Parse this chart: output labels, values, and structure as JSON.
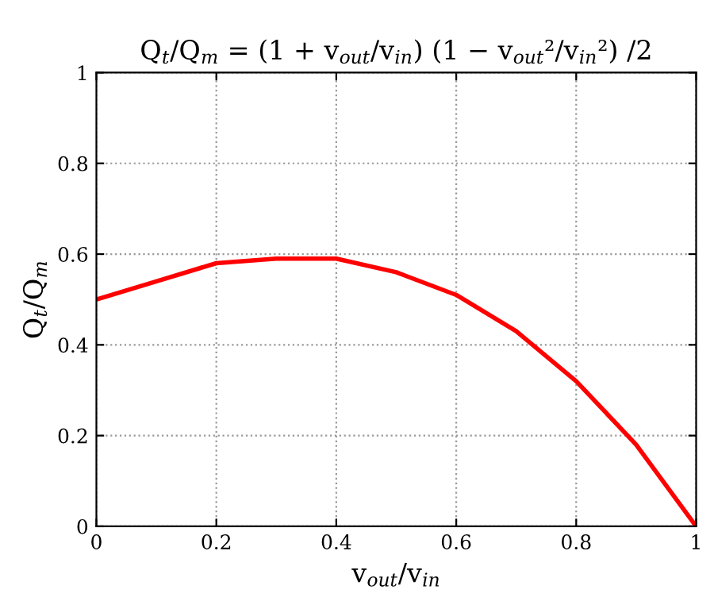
{
  "chart_data": {
    "type": "line",
    "title": "Q$_{t}$/Q$_{m}$ = (1 + v$_{out}$/v$_{in}$) (1 − v$_{out}$²/v$_{in}$²) /2",
    "xlabel": "v$_{out}$/v$_{in}$",
    "ylabel": "Q$_{t}$/Q$_{m}$",
    "x": [
      0,
      0.1,
      0.2,
      0.3,
      0.33,
      0.4,
      0.5,
      0.6,
      0.7,
      0.8,
      0.9,
      1
    ],
    "series": [
      {
        "color": "#ff0000",
        "values": [
          0.5,
          0.54,
          0.58,
          0.59,
          0.59,
          0.59,
          0.56,
          0.51,
          0.43,
          0.32,
          0.18,
          0
        ]
      }
    ],
    "xlim": [
      0,
      1
    ],
    "ylim": [
      0,
      1
    ],
    "xticks": [
      0,
      0.2,
      0.4,
      0.6,
      0.8,
      1
    ],
    "yticks": [
      0,
      0.2,
      0.4,
      0.6,
      0.8,
      1
    ],
    "grid": true,
    "line_style": "solid",
    "marker": "none"
  }
}
